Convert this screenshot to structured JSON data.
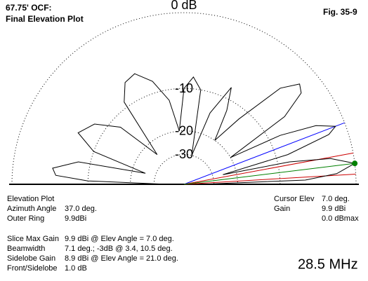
{
  "chart_data": {
    "type": "polar-elevation",
    "title": [
      "67.75' OCF:",
      "Final Elevation Plot"
    ],
    "figure": "Fig. 35-9",
    "frequency": "28.5 MHz",
    "rlim": [
      -40,
      0
    ],
    "rticks": [
      {
        "value": 0,
        "label": "0 dB"
      },
      -10,
      -20,
      -30
    ],
    "log_base": 0.89,
    "x": [
      0,
      2,
      4,
      7,
      10,
      12,
      14,
      16,
      19,
      21,
      24,
      27,
      30,
      34,
      38,
      41,
      45,
      50,
      55,
      60,
      64,
      70,
      75,
      80,
      85,
      90,
      95,
      100,
      107,
      114,
      120,
      126,
      132,
      138,
      146,
      154,
      160,
      164,
      168,
      173,
      176,
      178,
      180
    ],
    "series": [
      {
        "color": "#000000",
        "values": [
          -40,
          -6,
          -2,
          0,
          -2.5,
          -8,
          -25,
          -8,
          -2,
          -1,
          -3,
          -8,
          -20,
          -6,
          -2.5,
          -2,
          -4,
          -12,
          -20,
          -12,
          -8,
          -14,
          -30,
          -10,
          -8,
          -10,
          -20,
          -12,
          -8,
          -6,
          -6.5,
          -9,
          -25,
          -12,
          -8,
          -6.5,
          -10,
          -25,
          -8,
          -4.5,
          -5,
          -10,
          -40
        ]
      }
    ],
    "markers": [
      {
        "angle": 21,
        "color": "#0000ff"
      },
      {
        "angle": 3.4,
        "color": "#cc0000"
      },
      {
        "angle": 10.5,
        "color": "#cc0000"
      },
      {
        "angle": 7,
        "color": "#008000"
      }
    ],
    "info_top": [
      [
        "Elevation Plot",
        ""
      ],
      [
        "Azimuth Angle",
        "37.0 deg."
      ],
      [
        "Outer Ring",
        "9.9dBi"
      ]
    ],
    "info_right": [
      [
        "Cursor Elev",
        "7.0 deg."
      ],
      [
        "Gain",
        "9.9 dBi"
      ],
      [
        "",
        "0.0 dBmax"
      ]
    ],
    "info_bottom": [
      [
        "Slice Max Gain",
        "9.9 dBi @ Elev Angle = 7.0 deg."
      ],
      [
        "Beamwidth",
        "7.1 deg.; -3dB @ 3.4, 10.5 deg."
      ],
      [
        "Sidelobe Gain",
        "8.9 dBi @ Elev Angle = 21.0 deg."
      ],
      [
        "Front/Sidelobe",
        "1.0 dB"
      ]
    ]
  }
}
